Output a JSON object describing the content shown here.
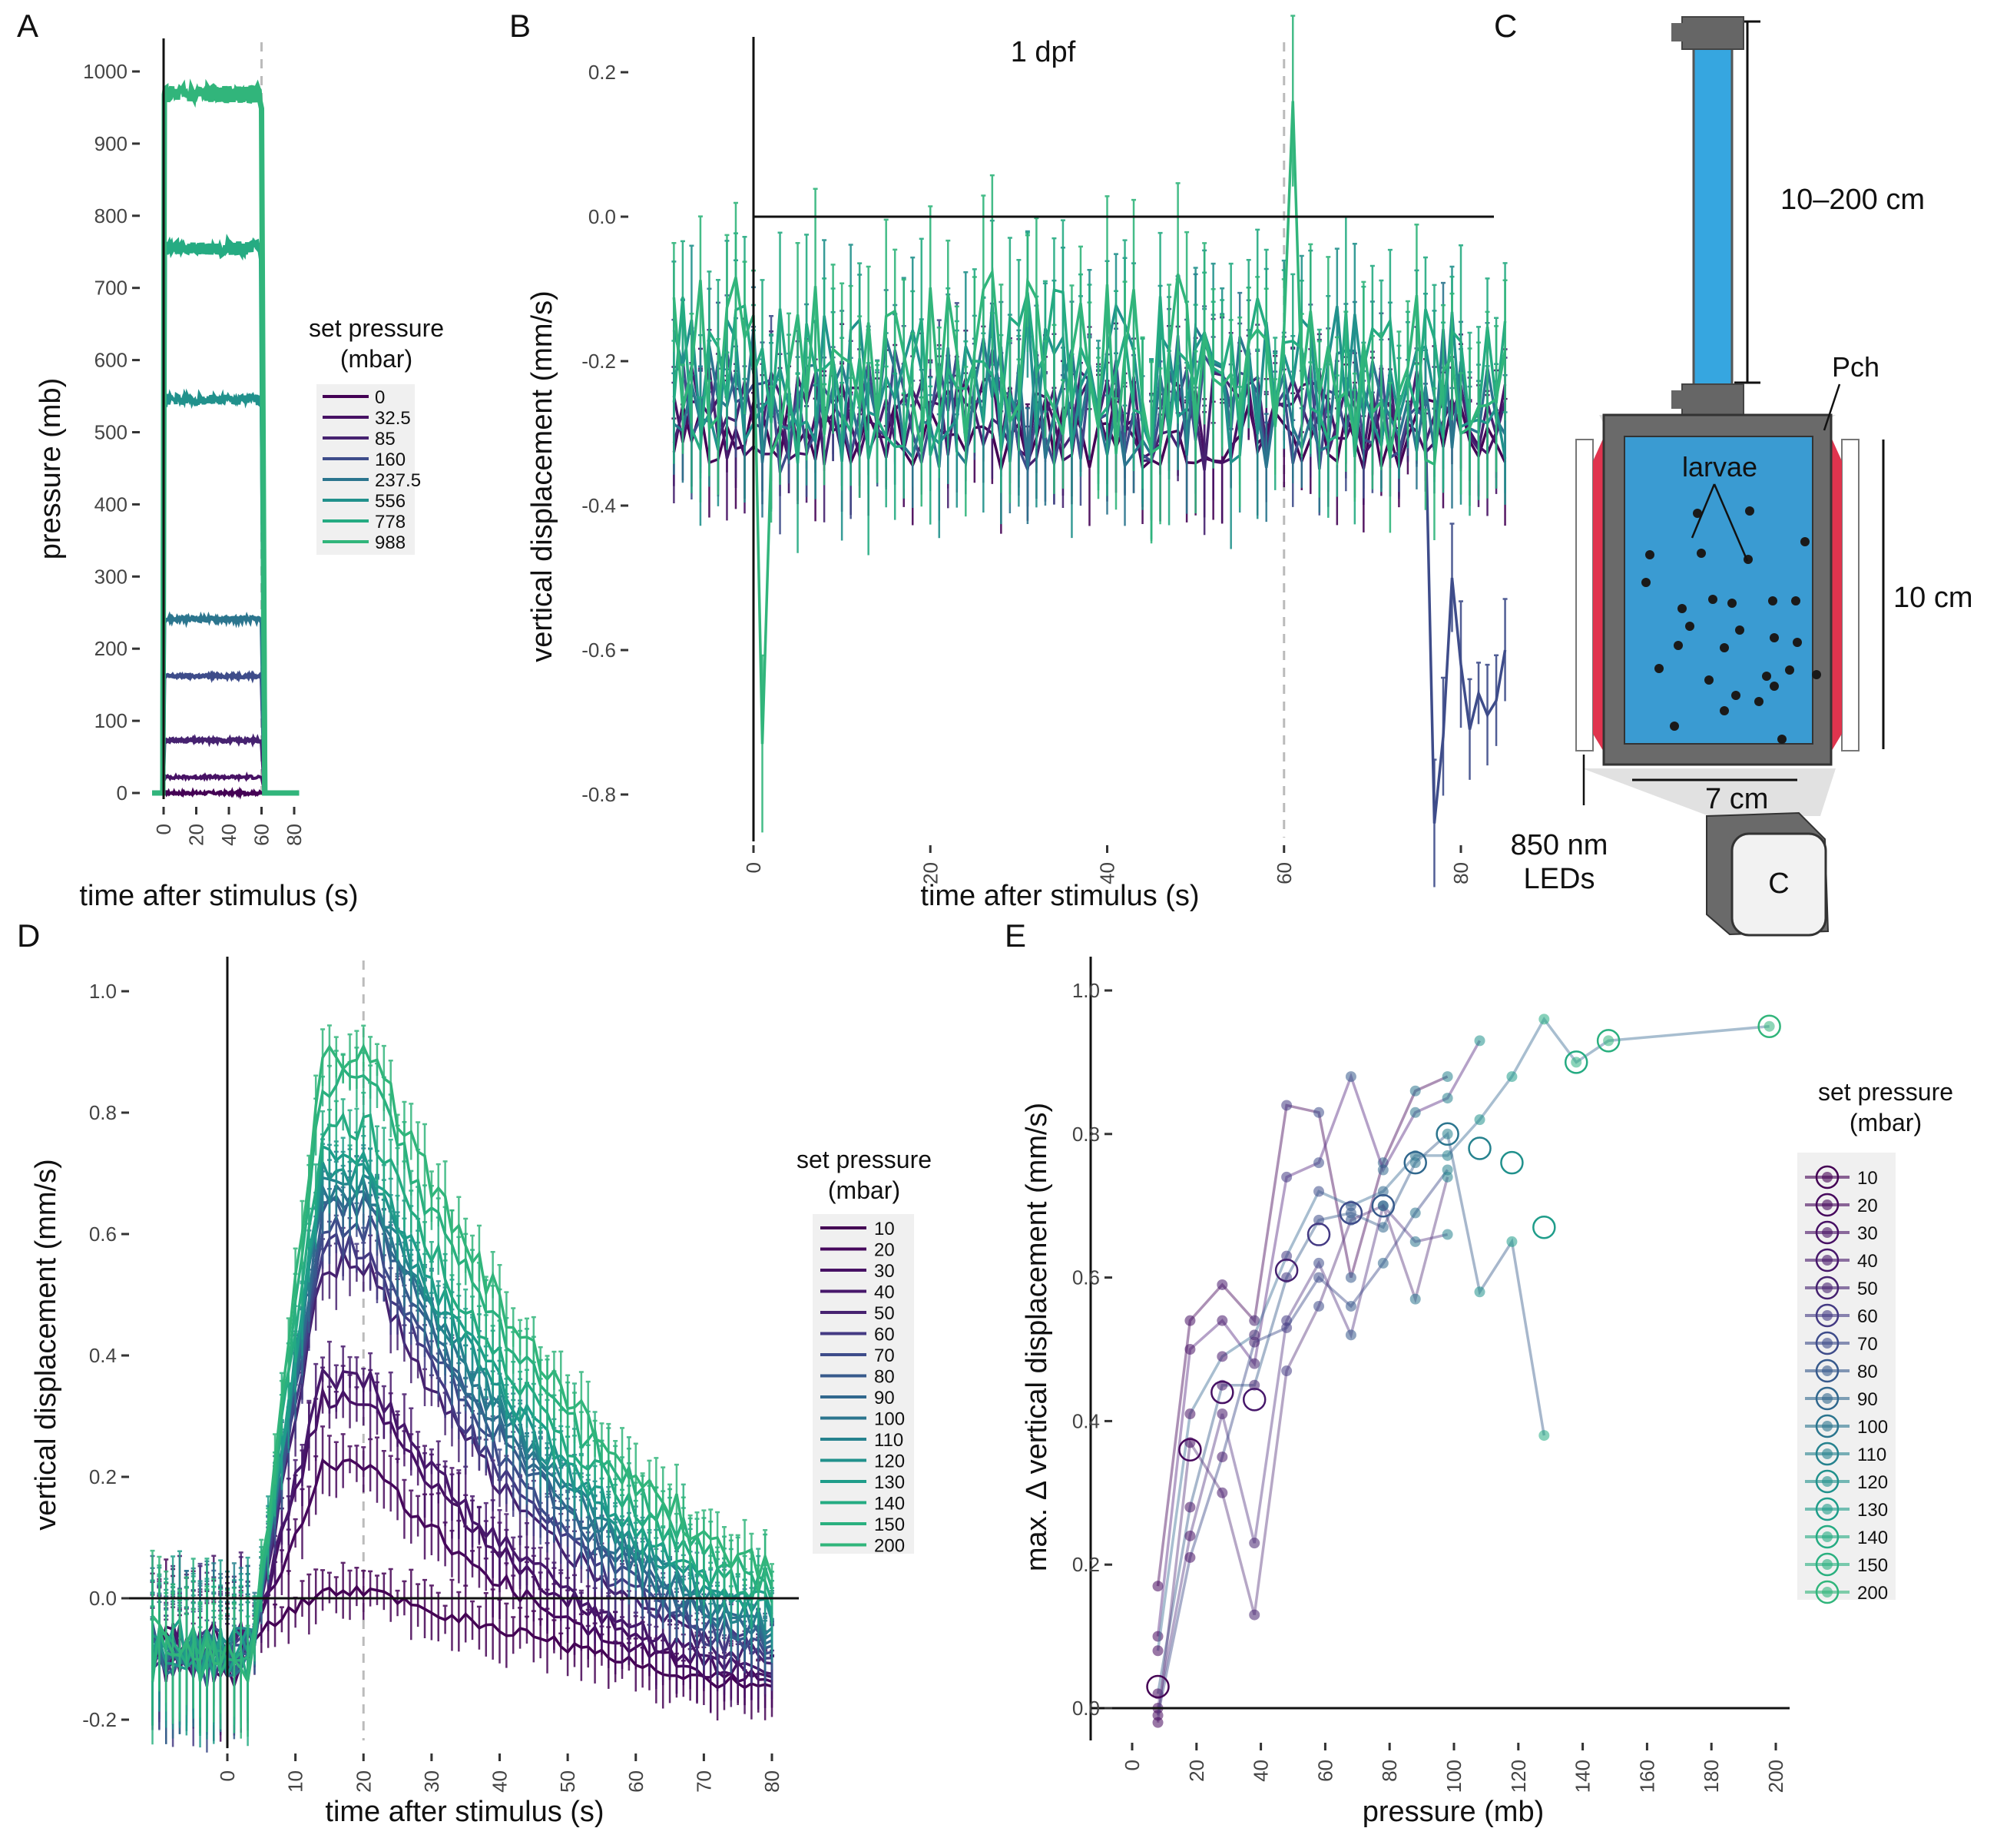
{
  "palette": [
    "#440154",
    "#46085c",
    "#471164",
    "#47186b",
    "#462270",
    "#443a83",
    "#3e4c8a",
    "#375a8c",
    "#31688e",
    "#2b758e",
    "#26828e",
    "#21918c",
    "#1f9d8a",
    "#25ab82",
    "#2ab07f",
    "#31b57b"
  ],
  "panels": {
    "A": {
      "letter": "A"
    },
    "B": {
      "letter": "B",
      "annotation": "1 dpf"
    },
    "C": {
      "letter": "C"
    },
    "D": {
      "letter": "D"
    },
    "E": {
      "letter": "E"
    }
  },
  "diagram": {
    "height_range": "10–200 cm",
    "chamber_label": "Pch",
    "larvae_label": "larvae",
    "chamber_height": "10 cm",
    "chamber_width": "7 cm",
    "led_line1": "850 nm",
    "led_line2": "LEDs",
    "camera_label": "C"
  },
  "chart_data": [
    {
      "id": "A",
      "type": "line",
      "xlabel": "time after stimulus (s)",
      "ylabel": "pressure (mb)",
      "xlim": [
        -8,
        84
      ],
      "ylim": [
        -20,
        1040
      ],
      "xticks": [
        0,
        20,
        40,
        60,
        80
      ],
      "yticks": [
        0,
        100,
        200,
        300,
        400,
        500,
        600,
        700,
        800,
        900,
        1000
      ],
      "stimulus_off_s": 60,
      "legend": {
        "title": [
          "set pressure",
          "(mbar)"
        ],
        "position": "right"
      },
      "series": [
        {
          "name": "0",
          "plateau": 0
        },
        {
          "name": "32.5",
          "plateau": 22
        },
        {
          "name": "85",
          "plateau": 73
        },
        {
          "name": "160",
          "plateau": 162
        },
        {
          "name": "237.5",
          "plateau": 241
        },
        {
          "name": "556",
          "plateau": 545
        },
        {
          "name": "778",
          "plateau": 755
        },
        {
          "name": "988",
          "plateau": 968
        }
      ]
    },
    {
      "id": "B",
      "type": "line",
      "title": "1 dpf",
      "xlabel": "time after stimulus (s)",
      "ylabel": "vertical displacement (mm/s)",
      "xlim": [
        -10,
        85
      ],
      "ylim": [
        -0.85,
        0.22
      ],
      "xticks": [
        0,
        20,
        40,
        60,
        80
      ],
      "yticks": [
        0.2,
        0.0,
        -0.2,
        -0.4,
        -0.6,
        -0.8
      ],
      "stimulus_off_s": 60,
      "series": [
        {
          "name": "0",
          "baseline": -0.3
        },
        {
          "name": "32.5",
          "baseline": -0.28
        },
        {
          "name": "85",
          "baseline": -0.28
        },
        {
          "name": "160",
          "baseline": -0.27
        },
        {
          "name": "237.5",
          "baseline": -0.25
        },
        {
          "name": "556",
          "baseline": -0.23
        },
        {
          "name": "778",
          "baseline": -0.22
        },
        {
          "name": "988",
          "baseline": -0.21
        }
      ],
      "features": {
        "dip_at_1s": -0.73,
        "spike_at_61s": 0.16,
        "late_drop_min": -0.84
      }
    },
    {
      "id": "D",
      "type": "line",
      "xlabel": "time after stimulus (s)",
      "ylabel": "vertical displacement (mm/s)",
      "xlim": [
        -12,
        83
      ],
      "ylim": [
        -0.22,
        1.05
      ],
      "xticks": [
        0,
        10,
        20,
        30,
        40,
        50,
        60,
        70,
        80
      ],
      "yticks": [
        1.0,
        0.8,
        0.6,
        0.4,
        0.2,
        0.0,
        -0.2
      ],
      "stimulus_off_s": 20,
      "legend": {
        "title": [
          "set pressure",
          "(mbar)"
        ],
        "position": "right"
      },
      "series": [
        {
          "name": "10",
          "peak": 0.01
        },
        {
          "name": "20",
          "peak": 0.22
        },
        {
          "name": "30",
          "peak": 0.33
        },
        {
          "name": "40",
          "peak": 0.36
        },
        {
          "name": "50",
          "peak": 0.55
        },
        {
          "name": "60",
          "peak": 0.58
        },
        {
          "name": "70",
          "peak": 0.61
        },
        {
          "name": "80",
          "peak": 0.64
        },
        {
          "name": "90",
          "peak": 0.65
        },
        {
          "name": "100",
          "peak": 0.67
        },
        {
          "name": "110",
          "peak": 0.68
        },
        {
          "name": "120",
          "peak": 0.7
        },
        {
          "name": "130",
          "peak": 0.72
        },
        {
          "name": "140",
          "peak": 0.78
        },
        {
          "name": "150",
          "peak": 0.85
        },
        {
          "name": "200",
          "peak": 0.9
        }
      ]
    },
    {
      "id": "E",
      "type": "scatter",
      "xlabel": "pressure (mb)",
      "ylabel": "max. Δ  vertical displacement (mm/s)",
      "xlim": [
        0,
        200
      ],
      "ylim": [
        0,
        1.0
      ],
      "xticks": [
        0,
        20,
        40,
        60,
        80,
        100,
        120,
        140,
        160,
        180,
        200
      ],
      "yticks": [
        1.0,
        0.8,
        0.6,
        0.4,
        0.2,
        0.0
      ],
      "legend": {
        "title": [
          "set pressure",
          "(mbar)"
        ],
        "position": "right"
      },
      "means": [
        {
          "name": "10",
          "x": 8,
          "y": 0.03
        },
        {
          "name": "20",
          "x": 18,
          "y": 0.36
        },
        {
          "name": "30",
          "x": 28,
          "y": 0.44
        },
        {
          "name": "40",
          "x": 38,
          "y": 0.43
        },
        {
          "name": "50",
          "x": 48,
          "y": 0.61
        },
        {
          "name": "60",
          "x": 58,
          "y": 0.66
        },
        {
          "name": "70",
          "x": 68,
          "y": 0.69
        },
        {
          "name": "80",
          "x": 78,
          "y": 0.7
        },
        {
          "name": "90",
          "x": 88,
          "y": 0.76
        },
        {
          "name": "100",
          "x": 98,
          "y": 0.8
        },
        {
          "name": "110",
          "x": 108,
          "y": 0.78
        },
        {
          "name": "120",
          "x": 118,
          "y": 0.76
        },
        {
          "name": "130",
          "x": 128,
          "y": 0.67
        },
        {
          "name": "140",
          "x": 138,
          "y": 0.9
        },
        {
          "name": "150",
          "x": 148,
          "y": 0.93
        },
        {
          "name": "200",
          "x": 198,
          "y": 0.95
        }
      ],
      "replicates": [
        [
          [
            8,
            0.17
          ],
          [
            18,
            0.54
          ],
          [
            28,
            0.59
          ],
          [
            38,
            0.54
          ],
          [
            48,
            0.84
          ],
          [
            58,
            0.83
          ],
          [
            68,
            0.6
          ],
          [
            78,
            0.76
          ],
          [
            88,
            0.86
          ],
          [
            98,
            0.88
          ]
        ],
        [
          [
            8,
            0.1
          ],
          [
            18,
            0.5
          ],
          [
            28,
            0.54
          ],
          [
            38,
            0.48
          ],
          [
            48,
            0.74
          ],
          [
            58,
            0.76
          ],
          [
            68,
            0.88
          ],
          [
            78,
            0.75
          ],
          [
            88,
            0.83
          ],
          [
            98,
            0.85
          ],
          [
            108,
            0.93
          ]
        ],
        [
          [
            8,
            0.08
          ],
          [
            18,
            0.41
          ],
          [
            28,
            0.49
          ],
          [
            38,
            0.52
          ],
          [
            48,
            0.63
          ],
          [
            58,
            0.72
          ],
          [
            68,
            0.7
          ],
          [
            78,
            0.72
          ],
          [
            88,
            0.77
          ],
          [
            98,
            0.77
          ],
          [
            108,
            0.82
          ],
          [
            118,
            0.88
          ],
          [
            128,
            0.96
          ],
          [
            138,
            0.9
          ],
          [
            148,
            0.93
          ],
          [
            198,
            0.95
          ]
        ],
        [
          [
            8,
            0.02
          ],
          [
            18,
            0.28
          ],
          [
            28,
            0.45
          ],
          [
            38,
            0.45
          ],
          [
            48,
            0.6
          ],
          [
            58,
            0.68
          ],
          [
            68,
            0.69
          ],
          [
            78,
            0.67
          ],
          [
            88,
            0.76
          ],
          [
            98,
            0.8
          ],
          [
            108,
            0.58
          ],
          [
            118,
            0.65
          ],
          [
            128,
            0.38
          ]
        ],
        [
          [
            8,
            0.0
          ],
          [
            18,
            0.24
          ],
          [
            28,
            0.41
          ],
          [
            38,
            0.23
          ],
          [
            48,
            0.54
          ],
          [
            58,
            0.62
          ],
          [
            68,
            0.52
          ],
          [
            78,
            0.7
          ],
          [
            88,
            0.65
          ],
          [
            98,
            0.66
          ]
        ],
        [
          [
            8,
            -0.01
          ],
          [
            18,
            0.21
          ],
          [
            28,
            0.35
          ],
          [
            38,
            0.51
          ],
          [
            48,
            0.53
          ],
          [
            58,
            0.6
          ],
          [
            68,
            0.56
          ],
          [
            78,
            0.62
          ],
          [
            88,
            0.69
          ],
          [
            98,
            0.75
          ]
        ],
        [
          [
            8,
            -0.02
          ],
          [
            18,
            0.37
          ],
          [
            28,
            0.3
          ],
          [
            38,
            0.13
          ],
          [
            48,
            0.47
          ],
          [
            58,
            0.56
          ],
          [
            68,
            0.68
          ],
          [
            78,
            0.7
          ],
          [
            88,
            0.57
          ],
          [
            98,
            0.74
          ]
        ]
      ]
    }
  ]
}
